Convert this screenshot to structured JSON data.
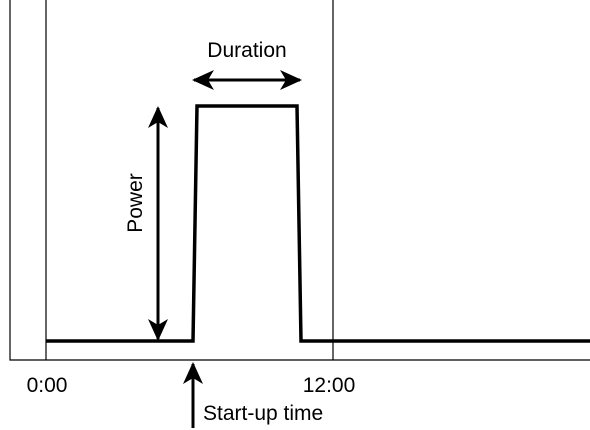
{
  "labels": {
    "duration": "Duration",
    "power": "Power",
    "start": "0:00",
    "noon": "12:00",
    "startup": "Start-up time"
  }
}
